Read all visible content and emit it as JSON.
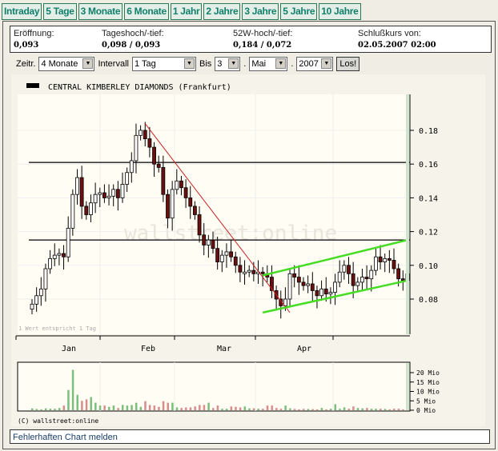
{
  "tabs": [
    "Intraday",
    "5 Tage",
    "3 Monate",
    "6 Monate",
    "1 Jahr",
    "2 Jahre",
    "3 Jahre",
    "5 Jahre",
    "10 Jahre"
  ],
  "info": [
    {
      "label": "Eröffnung:",
      "value": "0,093"
    },
    {
      "label": "Tageshoch/-tief:",
      "value": "0,098 / 0,093"
    },
    {
      "label": "52W-hoch/-tief:",
      "value": "0,184 / 0,072"
    },
    {
      "label": "Schlußkurs von:",
      "value": "02.05.2007 02:00"
    }
  ],
  "controls": {
    "zeitr_label": "Zeitr.",
    "zeitr_value": "4 Monate",
    "intervall_label": "Intervall",
    "intervall_value": "1 Tag",
    "bis_label": "Bis",
    "day": "3",
    "month": "Mai",
    "year": "2007",
    "submit": "Los!",
    "dot": "."
  },
  "report_link": "Fehlerhaften Chart melden",
  "chart_data": {
    "type": "candlestick",
    "title": "CENTRAL KIMBERLEY DIAMONDS (Frankfurt)",
    "note": "1 Wert entspricht 1 Tag",
    "watermark": "wallstreet:online",
    "copyright": "(C) wallstreet:online",
    "x_tick_labels": [
      "Jan",
      "Feb",
      "Mar",
      "Apr"
    ],
    "y_ticks": [
      0.08,
      0.1,
      0.12,
      0.14,
      0.16,
      0.18
    ],
    "ylim": [
      0.068,
      0.19
    ],
    "grid": true,
    "colors": {
      "up": "#ffffff",
      "down": "#6b0f0f",
      "vol_up": "#7cbf7c",
      "vol_down": "#d98c8c",
      "trend_down": "#cc2222",
      "channel": "#44dd22"
    },
    "closes": [
      0.077,
      0.082,
      0.086,
      0.098,
      0.104,
      0.106,
      0.107,
      0.105,
      0.122,
      0.142,
      0.152,
      0.135,
      0.13,
      0.137,
      0.142,
      0.143,
      0.14,
      0.141,
      0.145,
      0.14,
      0.148,
      0.155,
      0.162,
      0.177,
      0.18,
      0.175,
      0.17,
      0.16,
      0.158,
      0.142,
      0.128,
      0.145,
      0.15,
      0.146,
      0.14,
      0.135,
      0.13,
      0.118,
      0.112,
      0.115,
      0.11,
      0.102,
      0.106,
      0.108,
      0.105,
      0.1,
      0.096,
      0.096,
      0.097,
      0.095,
      0.096,
      0.095,
      0.093,
      0.085,
      0.08,
      0.076,
      0.08,
      0.095,
      0.093,
      0.09,
      0.088,
      0.089,
      0.085,
      0.082,
      0.086,
      0.083,
      0.084,
      0.09,
      0.096,
      0.1,
      0.095,
      0.088,
      0.09,
      0.093,
      0.092,
      0.097,
      0.105,
      0.102,
      0.104,
      0.103,
      0.098,
      0.092,
      0.091,
      0.095
    ],
    "horizontal_lines": [
      0.161,
      0.115
    ],
    "trend_lines": [
      {
        "kind": "down",
        "from": [
          25,
          0.184
        ],
        "to": [
          57,
          0.072
        ]
      },
      {
        "kind": "channel-upper",
        "from": [
          51,
          0.094
        ],
        "to": [
          83,
          0.115
        ]
      },
      {
        "kind": "channel-lower",
        "from": [
          51,
          0.072
        ],
        "to": [
          83,
          0.091
        ]
      }
    ],
    "volume": {
      "unit": "Mio",
      "y_tick_labels": [
        "20 Mio",
        "15 Mio",
        "10 Mio",
        "5 Mio",
        "0 Mio"
      ],
      "y_ticks": [
        20,
        15,
        10,
        5,
        0
      ],
      "values": [
        1,
        0.7,
        0.5,
        1,
        0.8,
        0.8,
        1.2,
        2.5,
        10.8,
        21.5,
        8.2,
        5,
        5.8,
        7,
        4,
        2.5,
        2.5,
        1.8,
        2.5,
        1.2,
        2.8,
        2.5,
        2.8,
        4,
        1.8,
        4.8,
        2.8,
        2.5,
        1.8,
        4.8,
        4,
        4,
        1.5,
        1.2,
        1.5,
        1.5,
        2,
        2.8,
        2.8,
        4,
        1.2,
        2.5,
        0.8,
        0.8,
        2,
        1.8,
        1.5,
        2,
        1,
        1,
        0.8,
        0.8,
        2.5,
        2.5,
        1.2,
        0.8,
        2.5,
        1,
        0.7,
        0.5,
        0.7,
        0.7,
        0.6,
        0.5,
        1.2,
        0.5,
        0.8,
        3.2,
        0.8,
        1.5,
        0.8,
        2,
        1.2,
        1,
        1.2,
        0.8,
        0.8,
        0.8,
        0.7,
        0.5,
        0.8,
        0.8,
        0.5,
        0.5
      ]
    }
  }
}
